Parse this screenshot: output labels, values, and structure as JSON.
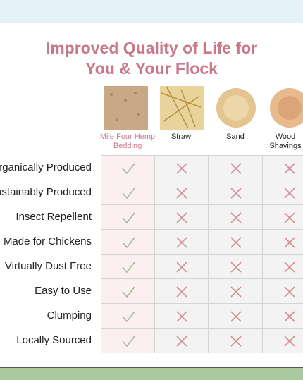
{
  "title": "Improved Quality of Life for You & Your Flock",
  "columns": [
    "Mile Four Hemp Bedding",
    "Straw",
    "Sand",
    "Wood Shavings"
  ],
  "rows": [
    "Organically Produced",
    "Sustainably Produced",
    "Insect Repellent",
    "Made for Chickens",
    "Virtually Dust Free",
    "Easy to Use",
    "Clumping",
    "Locally Sourced"
  ]
}
